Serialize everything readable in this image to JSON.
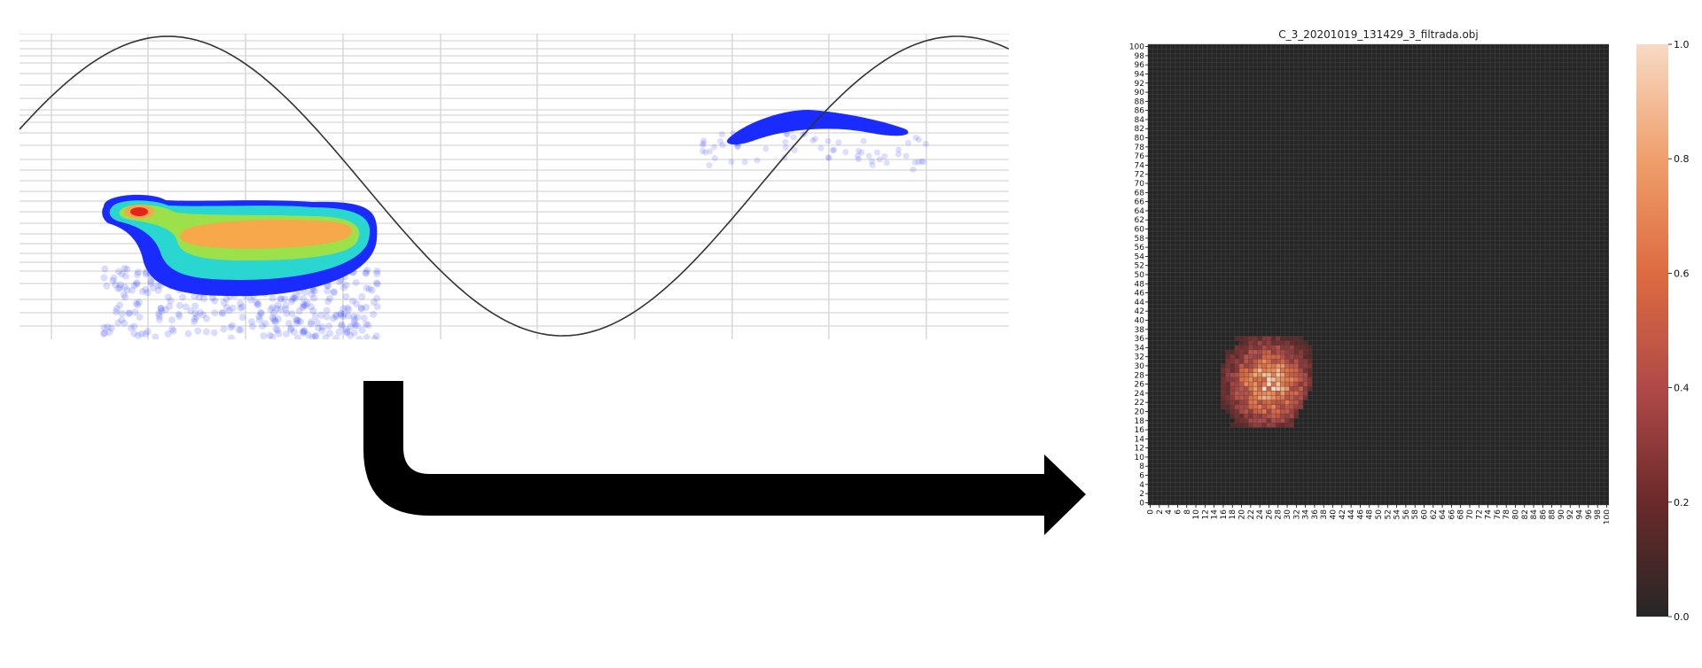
{
  "left_plot": {
    "image_name": "phase-resolved-pd-pattern",
    "colors": {
      "sine": "#333333",
      "grid": "#d6d6d6",
      "cluster_low": "#1a2bff",
      "cluster_mid": "#29d6d0",
      "cluster_high_1": "#9ce14a",
      "cluster_high_2": "#f6a84a",
      "cluster_peak": "#e8231c"
    }
  },
  "arrow": {
    "icon": "curved-arrow-icon",
    "color": "#000000"
  },
  "heatmap": {
    "title": "C_3_20201019_131429_3_filtrada.obj",
    "background": "#262626",
    "grid_color": "#4d4d4d",
    "chart_data": {
      "type": "heatmap",
      "title": "C_3_20201019_131429_3_filtrada.obj",
      "x_ticks": [
        "0",
        "2",
        "4",
        "6",
        "8",
        "10",
        "12",
        "14",
        "16",
        "18",
        "20",
        "22",
        "24",
        "26",
        "28",
        "30",
        "32",
        "34",
        "36",
        "38",
        "40",
        "42",
        "44",
        "46",
        "48",
        "50",
        "52",
        "54",
        "56",
        "58",
        "60",
        "62",
        "64",
        "66",
        "68",
        "70",
        "72",
        "74",
        "76",
        "78",
        "80",
        "82",
        "84",
        "86",
        "88",
        "90",
        "92",
        "94",
        "96",
        "98",
        "100"
      ],
      "y_ticks": [
        "0",
        "2",
        "4",
        "6",
        "8",
        "10",
        "12",
        "14",
        "16",
        "18",
        "20",
        "22",
        "24",
        "26",
        "28",
        "30",
        "32",
        "34",
        "36",
        "38",
        "40",
        "42",
        "44",
        "46",
        "48",
        "50",
        "52",
        "54",
        "56",
        "58",
        "60",
        "62",
        "64",
        "66",
        "68",
        "70",
        "72",
        "74",
        "76",
        "78",
        "80",
        "82",
        "84",
        "86",
        "88",
        "90",
        "92",
        "94",
        "96",
        "98",
        "100"
      ],
      "grid_size": [
        101,
        101
      ],
      "hotspot": {
        "x_range": [
          16,
          35
        ],
        "y_range": [
          17,
          36
        ],
        "peak": [
          26,
          26
        ],
        "peak_value": 1.0
      },
      "value_range": [
        0.0,
        1.0
      ]
    }
  },
  "colorbar": {
    "ticks": [
      "0.0",
      "0.2",
      "0.4",
      "0.6",
      "0.8",
      "1.0"
    ],
    "stops": [
      "#262626",
      "#6b2a2a",
      "#b04a48",
      "#dd6b40",
      "#ef9f6c",
      "#f7dac3"
    ]
  }
}
